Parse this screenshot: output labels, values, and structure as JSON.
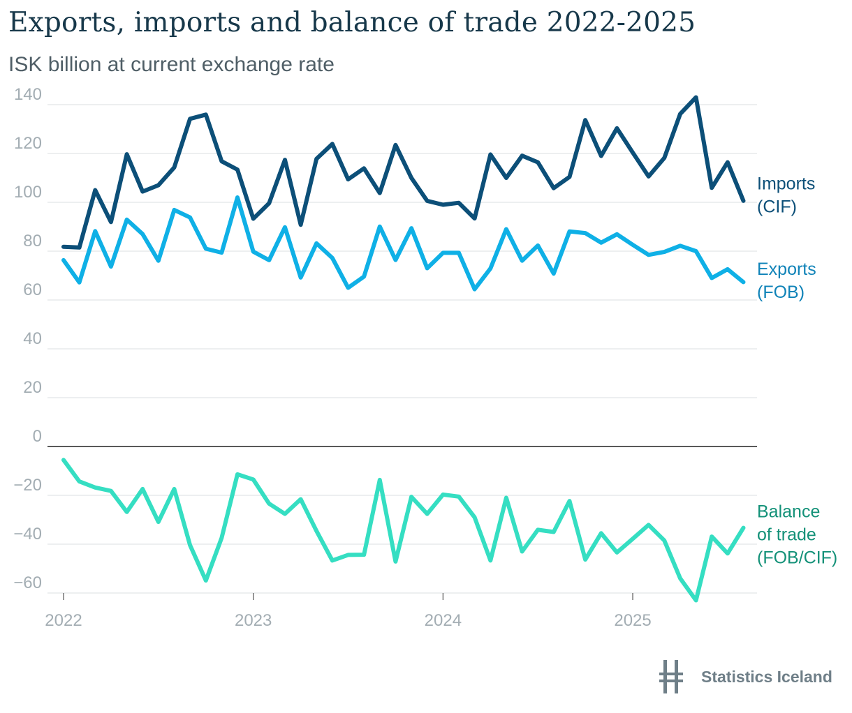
{
  "chart_data": {
    "type": "line",
    "title": "Exports, imports and balance of trade 2022-2025",
    "subtitle": "ISK billion at current exchange rate",
    "xlabel": "",
    "ylabel": "",
    "x_ticks": [
      "2022",
      "2023",
      "2024",
      "2025"
    ],
    "y_ticks": [
      "140",
      "120",
      "100",
      "80",
      "60",
      "40",
      "20",
      "0",
      "−20",
      "−40",
      "−60"
    ],
    "ylim": [
      -62,
      145
    ],
    "grid": true,
    "legend_placement": "right (direct labels at line ends)",
    "x": [
      "2022-01",
      "2022-02",
      "2022-03",
      "2022-04",
      "2022-05",
      "2022-06",
      "2022-07",
      "2022-08",
      "2022-09",
      "2022-10",
      "2022-11",
      "2022-12",
      "2023-01",
      "2023-02",
      "2023-03",
      "2023-04",
      "2023-05",
      "2023-06",
      "2023-07",
      "2023-08",
      "2023-09",
      "2023-10",
      "2023-11",
      "2023-12",
      "2024-01",
      "2024-02",
      "2024-03",
      "2024-04",
      "2024-05",
      "2024-06",
      "2024-07",
      "2024-08",
      "2024-09",
      "2024-10",
      "2024-11",
      "2024-12",
      "2025-01",
      "2025-02",
      "2025-03",
      "2025-04",
      "2025-05",
      "2025-06",
      "2025-07",
      "2025-08"
    ],
    "series": [
      {
        "name": "Imports (CIF)",
        "label_lines": [
          "Imports",
          "(CIF)"
        ],
        "color": "#0c4f78",
        "label_color": "#0c4f78",
        "values": [
          81.8,
          81.5,
          105.0,
          91.9,
          119.7,
          104.4,
          107.0,
          114.3,
          134.2,
          135.9,
          116.8,
          113.4,
          93.3,
          99.6,
          117.4,
          90.8,
          117.8,
          123.9,
          109.4,
          113.9,
          103.8,
          123.5,
          110.0,
          100.6,
          99.0,
          99.8,
          93.4,
          119.6,
          110.0,
          119.1,
          116.4,
          105.8,
          110.4,
          133.7,
          119.0,
          130.3,
          120.4,
          110.6,
          118.2,
          136.2,
          143.0,
          105.9,
          116.4,
          100.6
        ]
      },
      {
        "name": "Exports (FOB)",
        "label_lines": [
          "Exports",
          "(FOB)"
        ],
        "color": "#0fb0e6",
        "label_color": "#1083b8",
        "values": [
          76.3,
          67.2,
          88.2,
          73.7,
          92.9,
          87.0,
          76.1,
          96.9,
          93.8,
          81.0,
          79.4,
          102.0,
          79.8,
          76.3,
          89.8,
          69.2,
          83.2,
          77.2,
          65.0,
          69.6,
          90.1,
          76.4,
          89.4,
          73.0,
          79.3,
          79.3,
          64.4,
          72.9,
          89.0,
          76.1,
          82.3,
          70.8,
          88.1,
          87.4,
          83.5,
          86.9,
          82.6,
          78.5,
          79.7,
          82.2,
          80.0,
          69.0,
          72.6,
          67.3
        ]
      },
      {
        "name": "Balance of trade (FOB/CIF)",
        "label_lines": [
          "Balance",
          "of trade",
          "(FOB/CIF)"
        ],
        "color": "#35dec2",
        "label_color": "#139178",
        "values": [
          -5.5,
          -14.3,
          -16.8,
          -18.2,
          -26.8,
          -17.4,
          -30.9,
          -17.4,
          -40.4,
          -54.9,
          -37.4,
          -11.4,
          -13.5,
          -23.4,
          -27.6,
          -21.6,
          -34.6,
          -46.7,
          -44.4,
          -44.3,
          -13.7,
          -47.1,
          -20.6,
          -27.6,
          -19.7,
          -20.5,
          -29.0,
          -46.7,
          -21.0,
          -43.0,
          -34.1,
          -35.0,
          -22.3,
          -46.3,
          -35.5,
          -43.4,
          -37.8,
          -32.1,
          -38.5,
          -54.0,
          -63.0,
          -36.9,
          -43.8,
          -33.3
        ]
      }
    ]
  },
  "footer": {
    "logo_text": "Statistics Iceland"
  },
  "colors": {
    "title": "#17384a",
    "subtitle": "#4f5e66",
    "grid": "#e2e5e7",
    "zero_line": "#222222",
    "tick_label": "#a3adb3",
    "logo": "#6f7f88"
  }
}
